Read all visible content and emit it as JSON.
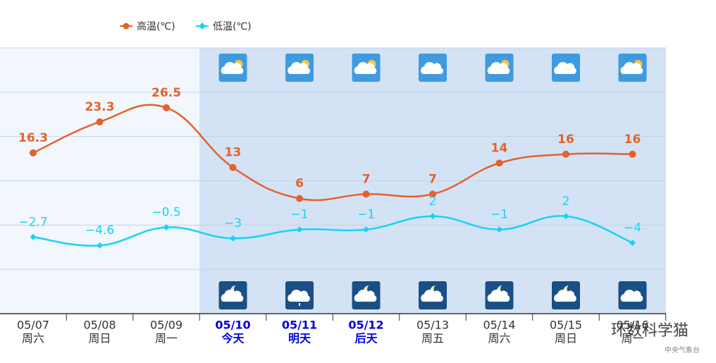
{
  "chart_data": {
    "type": "line",
    "categories": [
      "05/07",
      "05/08",
      "05/09",
      "05/10",
      "05/11",
      "05/12",
      "05/13",
      "05/14",
      "05/15",
      "05/16"
    ],
    "weekdays": [
      "周六",
      "周日",
      "周一",
      "今天",
      "明天",
      "后天",
      "周五",
      "周六",
      "周日",
      "周一"
    ],
    "highlight": {
      "from": 3,
      "to": 5,
      "color": "#0000dd"
    },
    "series": [
      {
        "name": "高温(℃)",
        "color": "#e5612a",
        "marker": "circle",
        "values": [
          16.3,
          23.3,
          26.5,
          13,
          6,
          7,
          7,
          14,
          16,
          16
        ]
      },
      {
        "name": "低温(℃)",
        "color": "#17d3f3",
        "marker": "diamond",
        "values": [
          -2.7,
          -4.6,
          -0.5,
          -3,
          -1,
          -1,
          2,
          -1,
          2,
          -4
        ],
        "value_labels": [
          "−2.7",
          "−4.6",
          "−0.5",
          "−3",
          "−1",
          "−1",
          "2",
          "−1",
          "2",
          "−4"
        ]
      }
    ],
    "ylim": [
      -20,
      40
    ],
    "yticks": [
      -10,
      0,
      10,
      20,
      30,
      40
    ],
    "grid": true,
    "watermark": "环数科学猫",
    "source": "中央气象台"
  }
}
